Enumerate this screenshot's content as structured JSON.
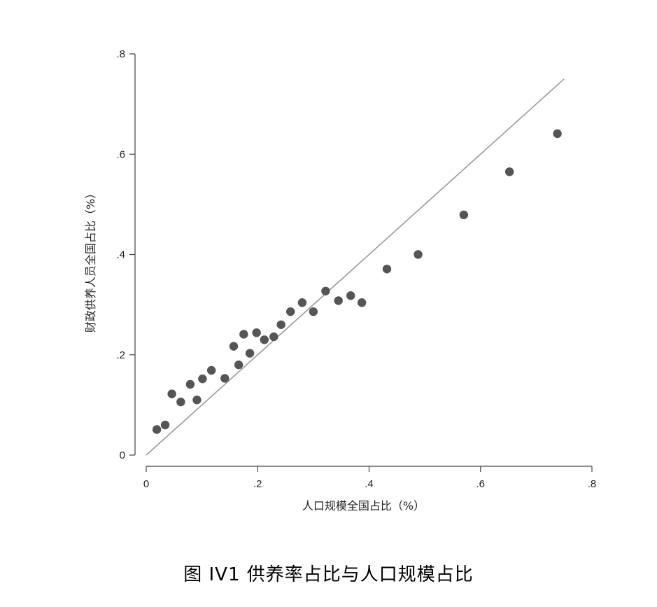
{
  "top_fragment": "",
  "caption": "图 IV1 供养率占比与人口规模占比",
  "chart_data": {
    "type": "scatter",
    "xlabel": "人口规模全国占比（%）",
    "ylabel": "财政供养人员全国占比（%）",
    "xlim": [
      0,
      0.8
    ],
    "ylim": [
      0,
      0.8
    ],
    "xticks": [
      0,
      0.2,
      0.4,
      0.6,
      0.8
    ],
    "xtick_labels": [
      "0",
      ".2",
      ".4",
      ".6",
      ".8"
    ],
    "yticks": [
      0,
      0.2,
      0.4,
      0.6,
      0.8
    ],
    "ytick_labels": [
      "0",
      ".2",
      ".4",
      ".6",
      ".8"
    ],
    "reference_line": {
      "from": [
        0,
        0
      ],
      "to": [
        0.75,
        0.75
      ],
      "color": "#999999"
    },
    "marker_color": "#555555",
    "grid": false,
    "points": [
      {
        "x": 0.019,
        "y": 0.051
      },
      {
        "x": 0.034,
        "y": 0.06
      },
      {
        "x": 0.046,
        "y": 0.122
      },
      {
        "x": 0.062,
        "y": 0.106
      },
      {
        "x": 0.079,
        "y": 0.141
      },
      {
        "x": 0.091,
        "y": 0.11
      },
      {
        "x": 0.101,
        "y": 0.152
      },
      {
        "x": 0.117,
        "y": 0.169
      },
      {
        "x": 0.141,
        "y": 0.153
      },
      {
        "x": 0.157,
        "y": 0.217
      },
      {
        "x": 0.166,
        "y": 0.18
      },
      {
        "x": 0.175,
        "y": 0.241
      },
      {
        "x": 0.186,
        "y": 0.203
      },
      {
        "x": 0.198,
        "y": 0.244
      },
      {
        "x": 0.212,
        "y": 0.23
      },
      {
        "x": 0.229,
        "y": 0.236
      },
      {
        "x": 0.242,
        "y": 0.26
      },
      {
        "x": 0.259,
        "y": 0.286
      },
      {
        "x": 0.28,
        "y": 0.304
      },
      {
        "x": 0.3,
        "y": 0.286
      },
      {
        "x": 0.322,
        "y": 0.327
      },
      {
        "x": 0.345,
        "y": 0.308
      },
      {
        "x": 0.367,
        "y": 0.318
      },
      {
        "x": 0.387,
        "y": 0.304
      },
      {
        "x": 0.432,
        "y": 0.371
      },
      {
        "x": 0.488,
        "y": 0.4
      },
      {
        "x": 0.57,
        "y": 0.479
      },
      {
        "x": 0.652,
        "y": 0.565
      },
      {
        "x": 0.738,
        "y": 0.641
      }
    ]
  }
}
